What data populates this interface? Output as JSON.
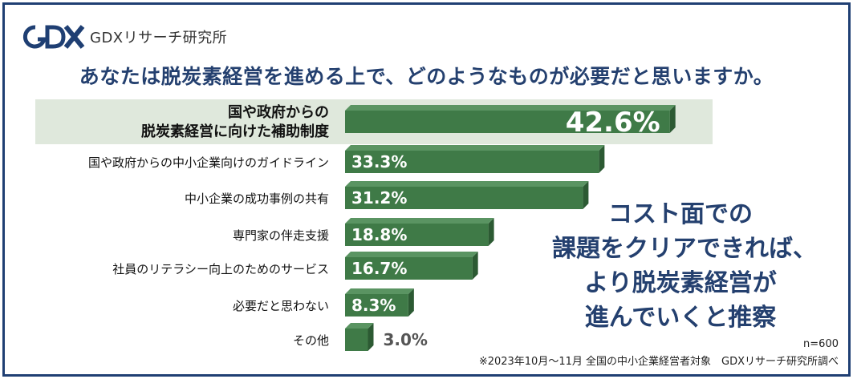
{
  "brand": {
    "logo_text": "GDXリサーチ研究所"
  },
  "colors": {
    "bar": "#3f7a47",
    "bar_side": "#2c5a33",
    "bar_top": "#5a9462",
    "highlight": "#dfe8dc",
    "navy": "#24406f"
  },
  "chart_data": {
    "type": "bar",
    "orientation": "horizontal",
    "title": "あなたは脱炭素経営を進める上で、どのようなものが必要だと思いますか。",
    "categories": [
      [
        "国や政府からの",
        "脱炭素経営に向けた補助制度"
      ],
      [
        "国や政府からの中小企業向けのガイドライン"
      ],
      [
        "中小企業の成功事例の共有"
      ],
      [
        "専門家の伴走支援"
      ],
      [
        "社員のリテラシー向上のためのサービス"
      ],
      [
        "必要だと思わない"
      ],
      [
        "その他"
      ]
    ],
    "values": [
      42.6,
      33.3,
      31.2,
      18.8,
      16.7,
      8.3,
      3.0
    ],
    "data_labels": [
      "42.6%",
      "33.3%",
      "31.2%",
      "18.8%",
      "16.7%",
      "8.3%",
      "3.0%"
    ],
    "highlighted_index": 0,
    "unit": "%",
    "xlim": [
      0,
      45
    ]
  },
  "conclusion": [
    "コスト面での",
    "課題をクリアできれば、",
    "より脱炭素経営が",
    "進んでいくと推察"
  ],
  "sample_note": "n=600",
  "footnote": "※2023年10月～11月 全国の中小企業経営者対象　GDXリサーチ研究所調べ"
}
